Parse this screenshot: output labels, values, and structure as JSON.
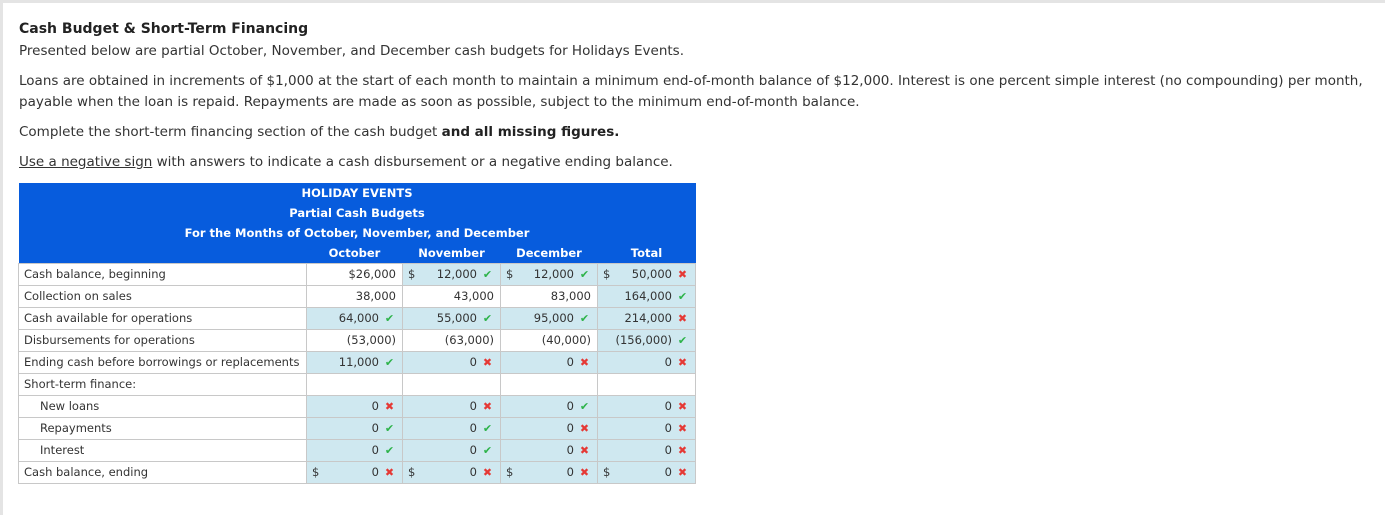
{
  "page": {
    "title": "Cash Budget & Short-Term Financing",
    "intro": "Presented below are partial October, November, and December cash budgets for Holidays Events.",
    "loan_terms": "Loans are obtained in increments of $1,000 at the start of each month to maintain a minimum end-of-month balance of $12,000. Interest is one percent simple interest (no compounding) per month, payable when the loan is repaid. Repayments are made as soon as possible, subject to the minimum end-of-month balance.",
    "instruction_plain": "Complete the short-term financing section of the cash budget ",
    "instruction_bold": "and all missing figures.",
    "hint_link": "Use a negative sign",
    "hint_rest": " with answers to indicate a cash disbursement or a negative ending balance."
  },
  "table": {
    "company": "HOLIDAY EVENTS",
    "statement": "Partial Cash Budgets",
    "period": "For the Months of October, November, and December",
    "columns": [
      "October",
      "November",
      "December",
      "Total"
    ],
    "rows": [
      {
        "label": "Cash balance, beginning",
        "cells": [
          {
            "value": "$26,000",
            "type": "given",
            "mark": ""
          },
          {
            "value": "12,000",
            "type": "input",
            "mark": "ok",
            "dollar": "$"
          },
          {
            "value": "12,000",
            "type": "input",
            "mark": "ok",
            "dollar": "$"
          },
          {
            "value": "50,000",
            "type": "input",
            "mark": "bad",
            "dollar": "$"
          }
        ]
      },
      {
        "label": "Collection on sales",
        "cells": [
          {
            "value": "38,000",
            "type": "given",
            "mark": ""
          },
          {
            "value": "43,000",
            "type": "given",
            "mark": ""
          },
          {
            "value": "83,000",
            "type": "given",
            "mark": ""
          },
          {
            "value": "164,000",
            "type": "input",
            "mark": "ok"
          }
        ]
      },
      {
        "label": "Cash available for operations",
        "cells": [
          {
            "value": "64,000",
            "type": "input",
            "mark": "ok"
          },
          {
            "value": "55,000",
            "type": "input",
            "mark": "ok"
          },
          {
            "value": "95,000",
            "type": "input",
            "mark": "ok"
          },
          {
            "value": "214,000",
            "type": "input",
            "mark": "bad"
          }
        ]
      },
      {
        "label": "Disbursements for operations",
        "cells": [
          {
            "value": "(53,000)",
            "type": "given",
            "mark": ""
          },
          {
            "value": "(63,000)",
            "type": "given",
            "mark": ""
          },
          {
            "value": "(40,000)",
            "type": "given",
            "mark": ""
          },
          {
            "value": "(156,000)",
            "type": "input",
            "mark": "ok"
          }
        ]
      },
      {
        "label": "Ending cash before borrowings or replacements",
        "cells": [
          {
            "value": "11,000",
            "type": "input",
            "mark": "ok"
          },
          {
            "value": "0",
            "type": "input",
            "mark": "bad"
          },
          {
            "value": "0",
            "type": "input",
            "mark": "bad"
          },
          {
            "value": "0",
            "type": "input",
            "mark": "bad"
          }
        ]
      },
      {
        "label": "Short-term finance:",
        "cells": [
          {
            "value": "",
            "type": "blank",
            "mark": ""
          },
          {
            "value": "",
            "type": "blank",
            "mark": ""
          },
          {
            "value": "",
            "type": "blank",
            "mark": ""
          },
          {
            "value": "",
            "type": "blank",
            "mark": ""
          }
        ]
      },
      {
        "label": "New loans",
        "indent": true,
        "cells": [
          {
            "value": "0",
            "type": "input",
            "mark": "bad"
          },
          {
            "value": "0",
            "type": "input",
            "mark": "bad"
          },
          {
            "value": "0",
            "type": "input",
            "mark": "ok"
          },
          {
            "value": "0",
            "type": "input",
            "mark": "bad"
          }
        ]
      },
      {
        "label": "Repayments",
        "indent": true,
        "cells": [
          {
            "value": "0",
            "type": "input",
            "mark": "ok"
          },
          {
            "value": "0",
            "type": "input",
            "mark": "ok"
          },
          {
            "value": "0",
            "type": "input",
            "mark": "bad"
          },
          {
            "value": "0",
            "type": "input",
            "mark": "bad"
          }
        ]
      },
      {
        "label": "Interest",
        "indent": true,
        "cells": [
          {
            "value": "0",
            "type": "input",
            "mark": "ok"
          },
          {
            "value": "0",
            "type": "input",
            "mark": "ok"
          },
          {
            "value": "0",
            "type": "input",
            "mark": "bad"
          },
          {
            "value": "0",
            "type": "input",
            "mark": "bad"
          }
        ]
      },
      {
        "label": "Cash balance, ending",
        "cells": [
          {
            "value": "0",
            "type": "input",
            "mark": "bad",
            "dollar": "$"
          },
          {
            "value": "0",
            "type": "input",
            "mark": "bad",
            "dollar": "$"
          },
          {
            "value": "0",
            "type": "input",
            "mark": "bad",
            "dollar": "$"
          },
          {
            "value": "0",
            "type": "input",
            "mark": "bad",
            "dollar": "$"
          }
        ]
      }
    ]
  },
  "icons": {
    "ok": "check-icon",
    "bad": "x-icon"
  },
  "colors": {
    "header_bg": "#075cdd",
    "input_bg": "#cfe8f0",
    "check": "#2db34a",
    "cross": "#e53935"
  }
}
